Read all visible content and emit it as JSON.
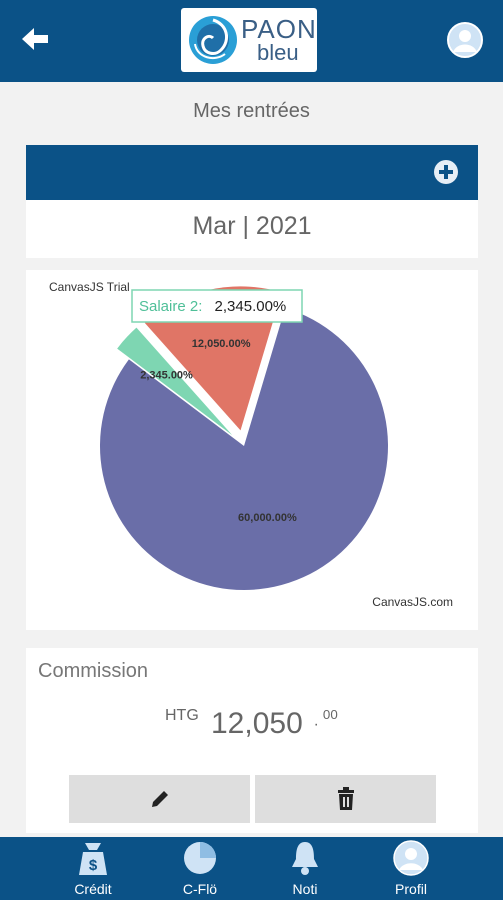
{
  "header": {
    "logo": {
      "line1": "PAON",
      "line2": "bleu"
    },
    "back_icon": "arrow-left-icon",
    "avatar_icon": "user-avatar-icon"
  },
  "page": {
    "title": "Mes rentrées"
  },
  "period_card": {
    "add_icon": "plus-circle-icon",
    "month_label": "Mar | 2021"
  },
  "chart_data": {
    "type": "pie",
    "title": "",
    "watermark_top": "CanvasJS Trial",
    "watermark_bottom": "CanvasJS.com",
    "tooltip": {
      "label": "Salaire 2:",
      "value": "2,345.00%"
    },
    "slices": [
      {
        "value": 60000,
        "label": "60,000.00%",
        "color": "#6a6ea8",
        "exploded": false
      },
      {
        "value": 2345,
        "label": "2,345.00%",
        "color": "#7ed6b2",
        "exploded": true
      },
      {
        "value": 12050,
        "label": "12,050.00%",
        "color": "#e07566",
        "exploded": true
      }
    ]
  },
  "commission": {
    "title": "Commission",
    "currency": "HTG",
    "amount": "12,050",
    "separator": ".",
    "decimals": "00",
    "edit_icon": "pencil-icon",
    "delete_icon": "trash-icon"
  },
  "bottom_nav": [
    {
      "label": "Crédit",
      "icon": "money-bag-icon"
    },
    {
      "label": "C-Flö",
      "icon": "pie-chart-icon"
    },
    {
      "label": "Noti",
      "icon": "bell-icon"
    },
    {
      "label": "Profil",
      "icon": "user-avatar-icon"
    }
  ],
  "colors": {
    "primary": "#0b5287",
    "background": "#f2f2f2"
  }
}
